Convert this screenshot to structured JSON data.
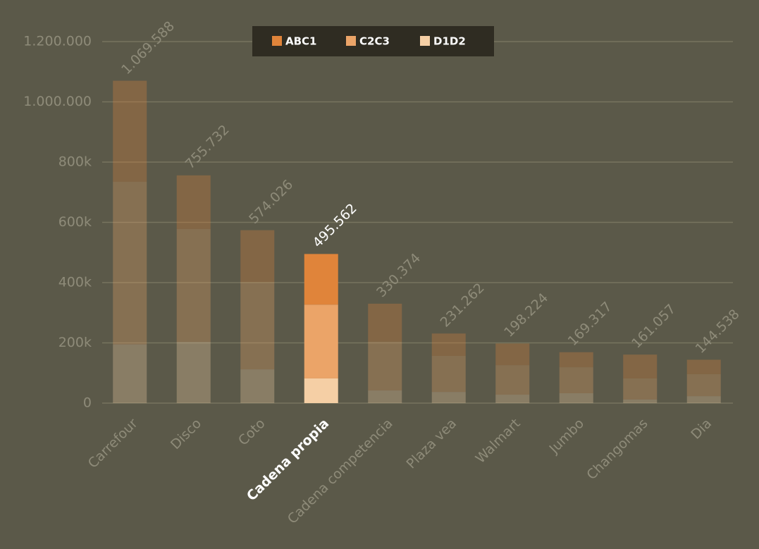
{
  "chart_data": {
    "type": "stacked-bar",
    "categories": [
      "Carrefour",
      "Disco",
      "Coto",
      "Cadena propia",
      "Cadena competencia",
      "Plaza vea",
      "Walmart",
      "Jumbo",
      "Changomas",
      "Dia"
    ],
    "series": [
      {
        "name": "D1D2",
        "color": "#f5cfa5",
        "values": [
          195000,
          203000,
          112000,
          82000,
          42000,
          37000,
          28000,
          33000,
          12000,
          23000
        ]
      },
      {
        "name": "C2C3",
        "color": "#eba468",
        "values": [
          540000,
          375000,
          290000,
          245000,
          162000,
          120000,
          98000,
          86000,
          70000,
          73000
        ]
      },
      {
        "name": "ABC1",
        "color": "#e0843a",
        "values": [
          335000,
          178000,
          172000,
          168000,
          126000,
          74000,
          72000,
          50000,
          79000,
          48000
        ]
      }
    ],
    "totals": {
      "values": [
        1069588,
        755732,
        574026,
        495562,
        330374,
        231262,
        198224,
        169317,
        161057,
        144538
      ],
      "value_labels": [
        "1.069.588",
        "755.732",
        "574.026",
        "495.562",
        "330.374",
        "231.262",
        "198.224",
        "169.317",
        "161.057",
        "144.538"
      ]
    },
    "highlight": 3,
    "ylim": [
      0,
      1200000
    ],
    "yticks": [
      0,
      {
        "value": 200000,
        "label": "200k"
      },
      {
        "value": 400000,
        "label": "400k"
      },
      {
        "value": 600000,
        "label": "600k"
      },
      {
        "value": 800000,
        "label": "800k"
      },
      {
        "value": 1000000,
        "label": "1.000.000"
      },
      {
        "value": 1200000,
        "label": "1.200.000"
      }
    ],
    "grid": true
  }
}
